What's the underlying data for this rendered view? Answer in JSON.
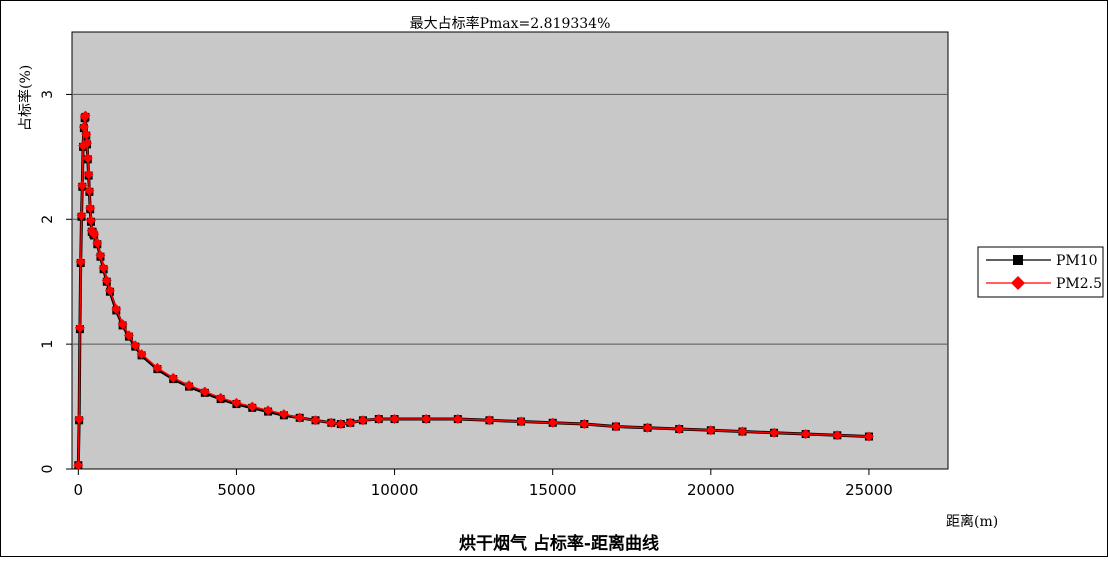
{
  "chart_data": {
    "type": "line",
    "title": "最大占标率Pmax=2.819334%",
    "footer_title": "烘干烟气 占标率-距离曲线",
    "xlabel": "距离(m)",
    "ylabel": "占标率(%)",
    "xlim": [
      -200,
      27500
    ],
    "ylim": [
      0,
      3.5
    ],
    "x_ticks": [
      0,
      5000,
      10000,
      15000,
      20000,
      25000
    ],
    "y_ticks": [
      0,
      1,
      2,
      3
    ],
    "grid": "horizontal",
    "plot_background": "#c8c8c8",
    "legend_position": "right",
    "series": [
      {
        "name": "PM10",
        "color": "#000000",
        "marker": "square",
        "x": [
          0,
          25,
          50,
          75,
          100,
          125,
          150,
          175,
          200,
          225,
          250,
          275,
          300,
          325,
          350,
          375,
          400,
          425,
          450,
          475,
          500,
          600,
          700,
          800,
          900,
          1000,
          1200,
          1400,
          1600,
          1800,
          2000,
          2500,
          3000,
          3500,
          4000,
          4500,
          5000,
          5500,
          6000,
          6500,
          7000,
          7500,
          8000,
          8300,
          8600,
          9000,
          9500,
          10000,
          11000,
          12000,
          13000,
          14000,
          15000,
          16000,
          17000,
          18000,
          19000,
          20000,
          21000,
          22000,
          23000,
          24000,
          25000
        ],
        "values": [
          0.03,
          0.39,
          1.12,
          1.65,
          2.02,
          2.26,
          2.58,
          2.73,
          2.81,
          2.82,
          2.67,
          2.6,
          2.48,
          2.35,
          2.22,
          2.08,
          1.98,
          1.9,
          1.9,
          1.88,
          1.87,
          1.8,
          1.7,
          1.6,
          1.5,
          1.42,
          1.27,
          1.15,
          1.06,
          0.98,
          0.91,
          0.8,
          0.72,
          0.66,
          0.61,
          0.56,
          0.52,
          0.49,
          0.46,
          0.43,
          0.41,
          0.39,
          0.37,
          0.36,
          0.37,
          0.39,
          0.4,
          0.4,
          0.4,
          0.4,
          0.39,
          0.38,
          0.37,
          0.36,
          0.34,
          0.33,
          0.32,
          0.31,
          0.3,
          0.29,
          0.28,
          0.27,
          0.26
        ]
      },
      {
        "name": "PM2.5",
        "color": "#ff0000",
        "marker": "diamond",
        "x": [
          0,
          25,
          50,
          75,
          100,
          125,
          150,
          175,
          200,
          225,
          250,
          275,
          300,
          325,
          350,
          375,
          400,
          425,
          450,
          475,
          500,
          600,
          700,
          800,
          900,
          1000,
          1200,
          1400,
          1600,
          1800,
          2000,
          2500,
          3000,
          3500,
          4000,
          4500,
          5000,
          5500,
          6000,
          6500,
          7000,
          7500,
          8000,
          8300,
          8600,
          9000,
          9500,
          10000,
          11000,
          12000,
          13000,
          14000,
          15000,
          16000,
          17000,
          18000,
          19000,
          20000,
          21000,
          22000,
          23000,
          24000,
          25000
        ],
        "values": [
          0.03,
          0.4,
          1.13,
          1.66,
          2.03,
          2.27,
          2.59,
          2.74,
          2.82,
          2.83,
          2.68,
          2.61,
          2.49,
          2.36,
          2.23,
          2.09,
          1.99,
          1.91,
          1.9,
          1.89,
          1.88,
          1.81,
          1.71,
          1.61,
          1.51,
          1.43,
          1.28,
          1.16,
          1.07,
          0.99,
          0.92,
          0.81,
          0.73,
          0.67,
          0.62,
          0.57,
          0.53,
          0.5,
          0.47,
          0.44,
          0.41,
          0.39,
          0.37,
          0.36,
          0.37,
          0.39,
          0.4,
          0.4,
          0.4,
          0.4,
          0.39,
          0.38,
          0.37,
          0.36,
          0.34,
          0.33,
          0.32,
          0.31,
          0.3,
          0.29,
          0.28,
          0.27,
          0.26
        ]
      }
    ]
  }
}
